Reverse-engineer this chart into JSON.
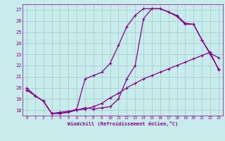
{
  "background_color": "#c8ecec",
  "grid_color": "#a8d4d4",
  "line_color": "#880088",
  "xlabel": "Windchill (Refroidissement éolien,°C)",
  "ylim": [
    17.5,
    27.5
  ],
  "xlim": [
    -0.5,
    23.5
  ],
  "yticks": [
    18,
    19,
    20,
    21,
    22,
    23,
    24,
    25,
    26,
    27
  ],
  "xticks": [
    0,
    1,
    2,
    3,
    4,
    5,
    6,
    7,
    8,
    9,
    10,
    11,
    12,
    13,
    14,
    15,
    16,
    17,
    18,
    19,
    20,
    21,
    22,
    23
  ],
  "line1_x": [
    0,
    1,
    2,
    3,
    4,
    5,
    6,
    7,
    8,
    9,
    10,
    11,
    12,
    13,
    14,
    15,
    16,
    17,
    18,
    19,
    20,
    21,
    22,
    23
  ],
  "line1_y": [
    20.0,
    19.3,
    18.8,
    17.7,
    17.7,
    17.8,
    18.1,
    20.8,
    21.1,
    21.4,
    22.2,
    23.8,
    25.5,
    26.5,
    27.1,
    27.1,
    27.1,
    26.8,
    26.5,
    25.8,
    25.7,
    24.3,
    23.1,
    22.7
  ],
  "line2_x": [
    0,
    1,
    2,
    3,
    4,
    5,
    6,
    7,
    8,
    9,
    10,
    11,
    12,
    13,
    14,
    15,
    16,
    17,
    18,
    19,
    20,
    21,
    22,
    23
  ],
  "line2_y": [
    19.8,
    19.3,
    18.8,
    17.7,
    17.7,
    17.8,
    18.0,
    18.2,
    18.1,
    18.2,
    18.3,
    19.0,
    20.8,
    22.0,
    26.2,
    27.1,
    27.1,
    26.8,
    26.4,
    25.7,
    25.7,
    24.3,
    23.0,
    21.7
  ],
  "line3_x": [
    0,
    1,
    2,
    3,
    4,
    5,
    6,
    7,
    8,
    9,
    10,
    11,
    12,
    13,
    14,
    15,
    16,
    17,
    18,
    19,
    20,
    21,
    22,
    23
  ],
  "line3_y": [
    19.8,
    19.3,
    18.8,
    17.7,
    17.8,
    17.9,
    18.0,
    18.1,
    18.3,
    18.6,
    19.1,
    19.5,
    20.0,
    20.4,
    20.8,
    21.1,
    21.4,
    21.7,
    22.0,
    22.3,
    22.6,
    22.9,
    23.2,
    21.6
  ]
}
